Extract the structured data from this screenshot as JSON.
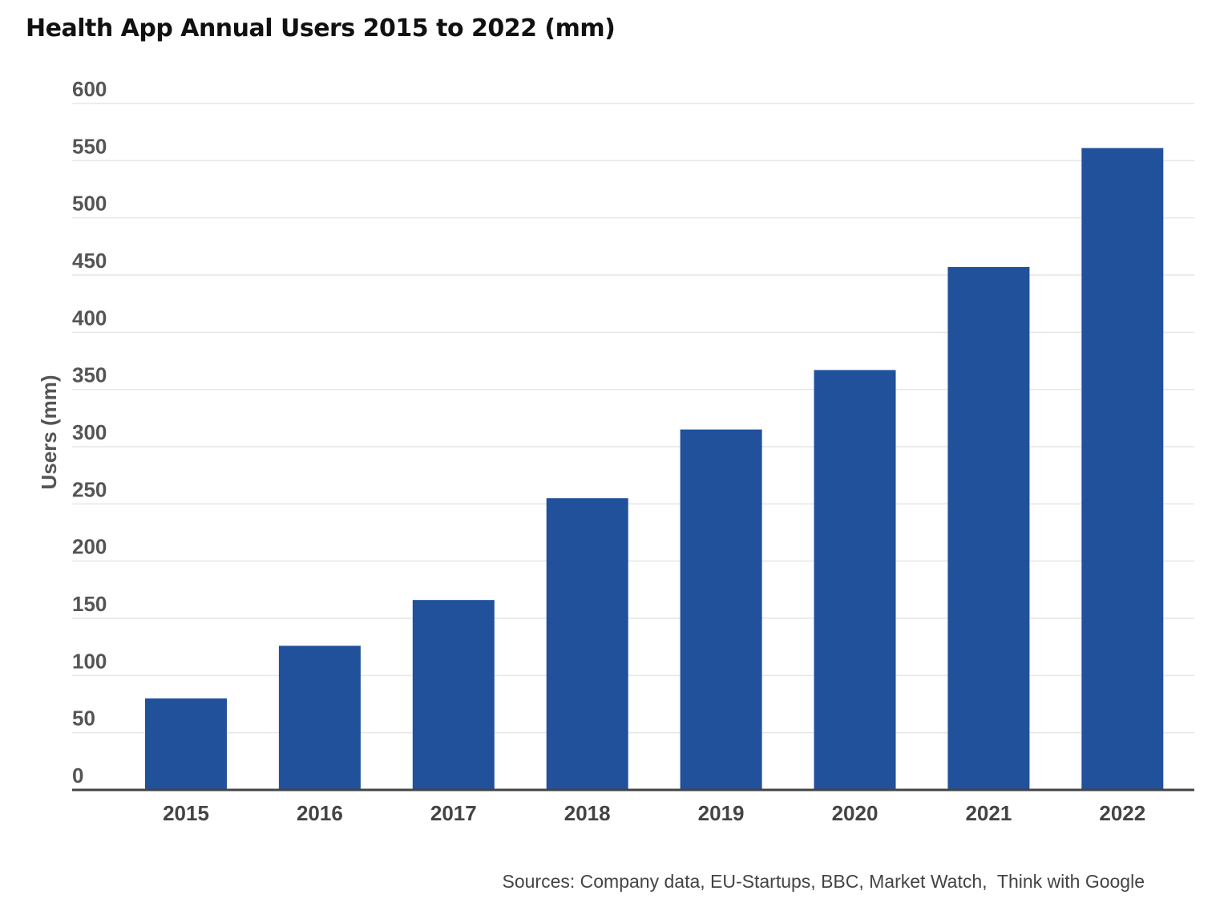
{
  "title": "Health App Annual Users 2015 to 2022 (mm)",
  "source": "Sources: Company data, EU-Startups, BBC, Market Watch,  Think with Google",
  "colors": {
    "bar": "#22519b",
    "grid": "#e6e6e6",
    "axis": "#444444"
  },
  "chart_data": {
    "type": "bar",
    "title": "Health App Annual Users 2015 to 2022 (mm)",
    "categories": [
      "2015",
      "2016",
      "2017",
      "2018",
      "2019",
      "2020",
      "2021",
      "2022"
    ],
    "values": [
      80,
      126,
      166,
      255,
      315,
      367,
      457,
      561
    ],
    "xlabel": "",
    "ylabel": "Users (mm)",
    "ylim": [
      0,
      600
    ],
    "yticks": [
      0,
      50,
      100,
      150,
      200,
      250,
      300,
      350,
      400,
      450,
      500,
      550,
      600
    ],
    "grid": true,
    "legend": "none"
  }
}
